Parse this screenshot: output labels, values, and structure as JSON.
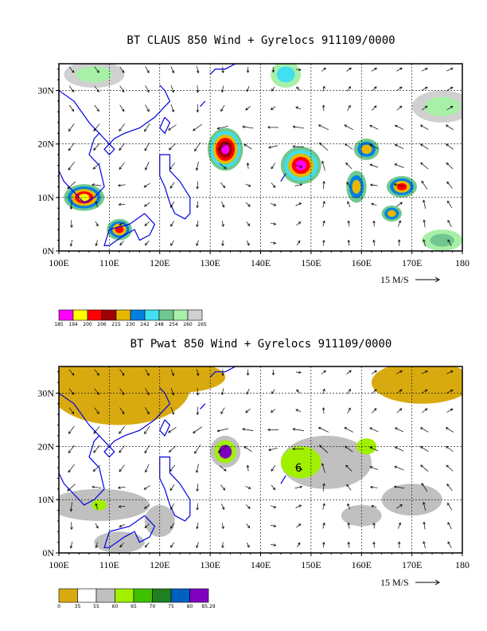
{
  "chart_data": [
    {
      "type": "heatmap",
      "title": "BT CLAUS 850 Wind + Gyrelocs 911109/0000",
      "lon_ticks": [
        "100E",
        "110E",
        "120E",
        "130E",
        "140E",
        "150E",
        "160E",
        "170E",
        "180"
      ],
      "lat_ticks": [
        "0N",
        "10N",
        "20N",
        "30N"
      ],
      "lon_range": [
        100,
        180
      ],
      "lat_range": [
        0,
        35
      ],
      "grid": true,
      "vector_ref_label": "15 M/S",
      "colorbar": {
        "labels": [
          "185",
          "194",
          "200",
          "206",
          "215",
          "230",
          "242",
          "248",
          "254",
          "260",
          "265"
        ],
        "colors": [
          "#ff00ff",
          "#ffff00",
          "#ff0000",
          "#a00000",
          "#e8b800",
          "#0080e0",
          "#40e0f0",
          "#70c890",
          "#a8f0a8",
          "#d0d0d0"
        ]
      },
      "cells": [
        {
          "lon": 105,
          "lat": 10,
          "value": 200
        },
        {
          "lon": 112,
          "lat": 4,
          "value": 206
        },
        {
          "lon": 133,
          "lat": 19,
          "value": 194
        },
        {
          "lon": 148,
          "lat": 16,
          "value": 185
        },
        {
          "lon": 161,
          "lat": 19,
          "value": 206
        },
        {
          "lon": 159,
          "lat": 12,
          "value": 215
        },
        {
          "lon": 168,
          "lat": 12,
          "value": 206
        },
        {
          "lon": 166,
          "lat": 7,
          "value": 230
        }
      ]
    },
    {
      "type": "heatmap",
      "title": "BT Pwat 850 Wind + Gyrelocs 911109/0000",
      "lon_ticks": [
        "100E",
        "110E",
        "120E",
        "130E",
        "140E",
        "150E",
        "160E",
        "170E",
        "180"
      ],
      "lat_ticks": [
        "0N",
        "10N",
        "20N",
        "30N"
      ],
      "lon_range": [
        100,
        180
      ],
      "lat_range": [
        0,
        35
      ],
      "grid": true,
      "vector_ref_label": "15 M/S",
      "annotation": "6",
      "colorbar": {
        "labels": [
          "0",
          "35",
          "55",
          "60",
          "65",
          "70",
          "75",
          "80",
          "85.29"
        ],
        "colors": [
          "#d8aa10",
          "#ffffff",
          "#c0c0c0",
          "#a0f000",
          "#40c000",
          "#208020",
          "#0060c0",
          "#8000c0"
        ]
      },
      "cells": [
        {
          "lon": 133,
          "lat": 19,
          "value": 85
        },
        {
          "lon": 148,
          "lat": 17,
          "value": 62
        },
        {
          "lon": 161,
          "lat": 20,
          "value": 62
        },
        {
          "lon": 108,
          "lat": 9,
          "value": 62
        }
      ]
    }
  ]
}
